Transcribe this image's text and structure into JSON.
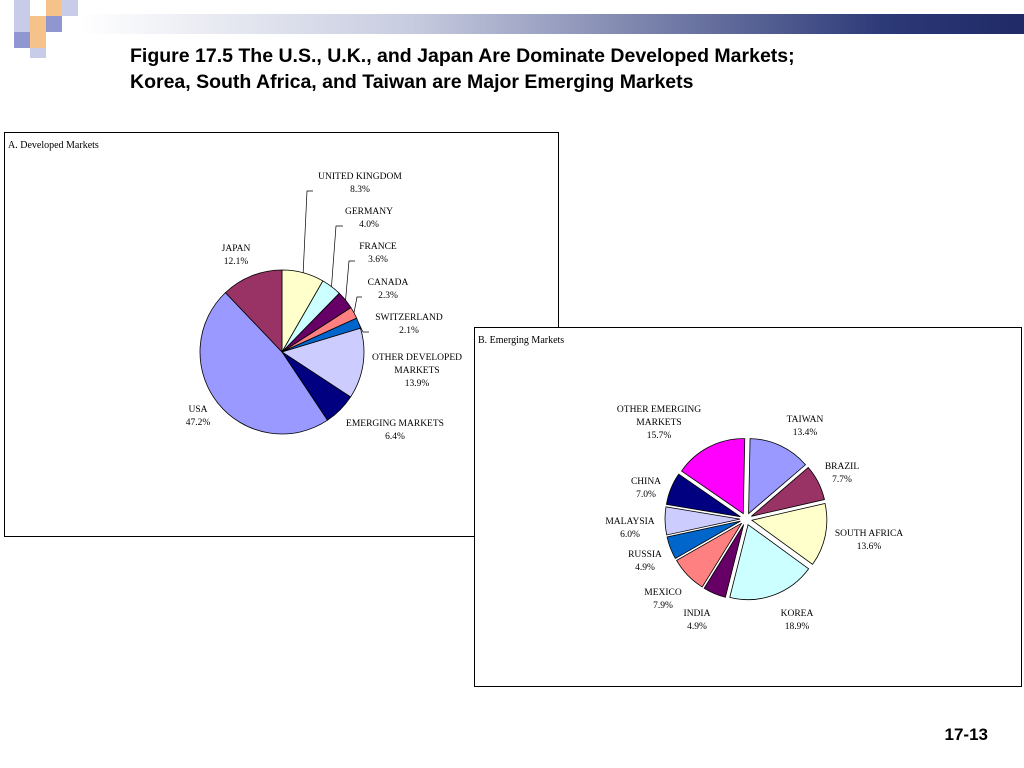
{
  "slide": {
    "title_line1": "Figure 17.5 The U.S., U.K., and Japan Are Dominate Developed Markets;",
    "title_line2": "Korea, South Africa, and Taiwan are Major Emerging Markets",
    "page_number": "17-13"
  },
  "colors": {
    "header_gradient_end": "#1f2a66",
    "deco_square_light": "#c8cce8",
    "deco_square_orange": "#f5c28a",
    "deco_square_blue": "#8f96d0"
  },
  "chart_data": [
    {
      "type": "pie",
      "title": "A. Developed Markets",
      "slices": [
        {
          "label": "UNITED KINGDOM",
          "value": 8.3,
          "value_label": "8.3%",
          "color": "#ffffcc"
        },
        {
          "label": "GERMANY",
          "value": 4.0,
          "value_label": "4.0%",
          "color": "#ccffff"
        },
        {
          "label": "FRANCE",
          "value": 3.6,
          "value_label": "3.6%",
          "color": "#660066"
        },
        {
          "label": "CANADA",
          "value": 2.3,
          "value_label": "2.3%",
          "color": "#ff8080"
        },
        {
          "label": "SWITZERLAND",
          "value": 2.1,
          "value_label": "2.1%",
          "color": "#0066cc"
        },
        {
          "label": "OTHER DEVELOPED MARKETS",
          "label_lines": [
            "OTHER DEVELOPED",
            "MARKETS"
          ],
          "value": 13.9,
          "value_label": "13.9%",
          "color": "#ccccff"
        },
        {
          "label": "EMERGING MARKETS",
          "value": 6.4,
          "value_label": "6.4%",
          "color": "#000080"
        },
        {
          "label": "USA",
          "value": 47.2,
          "value_label": "47.2%",
          "color": "#9999ff"
        },
        {
          "label": "JAPAN",
          "value": 12.1,
          "value_label": "12.1%",
          "color": "#993366"
        }
      ]
    },
    {
      "type": "pie",
      "title": "B. Emerging Markets",
      "exploded": true,
      "slices": [
        {
          "label": "TAIWAN",
          "value": 13.4,
          "value_label": "13.4%",
          "color": "#9999ff"
        },
        {
          "label": "BRAZIL",
          "value": 7.7,
          "value_label": "7.7%",
          "color": "#993366"
        },
        {
          "label": "SOUTH AFRICA",
          "value": 13.6,
          "value_label": "13.6%",
          "color": "#ffffcc"
        },
        {
          "label": "KOREA",
          "value": 18.9,
          "value_label": "18.9%",
          "color": "#ccffff"
        },
        {
          "label": "INDIA",
          "value": 4.9,
          "value_label": "4.9%",
          "color": "#660066"
        },
        {
          "label": "MEXICO",
          "value": 7.9,
          "value_label": "7.9%",
          "color": "#ff8080"
        },
        {
          "label": "RUSSIA",
          "value": 4.9,
          "value_label": "4.9%",
          "color": "#0066cc"
        },
        {
          "label": "MALAYSIA",
          "value": 6.0,
          "value_label": "6.0%",
          "color": "#ccccff"
        },
        {
          "label": "CHINA",
          "value": 7.0,
          "value_label": "7.0%",
          "color": "#000080"
        },
        {
          "label": "OTHER EMERGING MARKETS",
          "label_lines": [
            "OTHER EMERGING",
            "MARKETS"
          ],
          "value": 15.7,
          "value_label": "15.7%",
          "color": "#ff00ff"
        }
      ]
    }
  ]
}
